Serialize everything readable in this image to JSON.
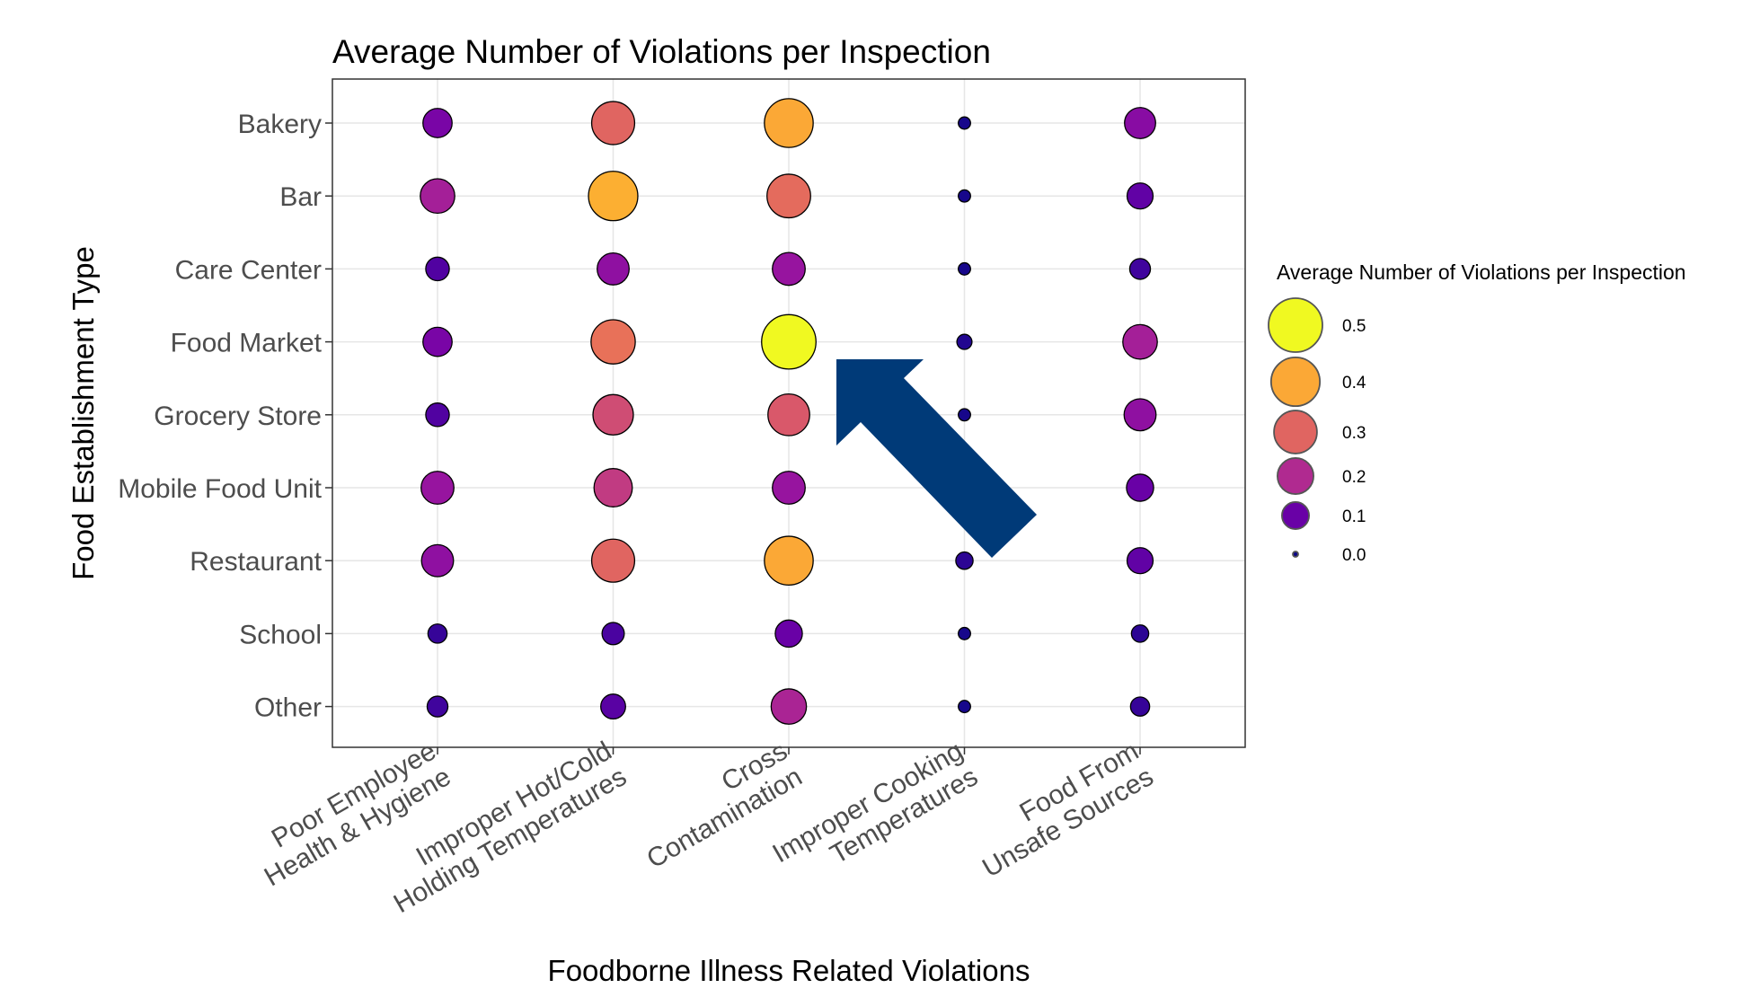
{
  "chart_data": {
    "type": "scatter",
    "title": "Average Number of Violations per Inspection",
    "xlabel": "Foodborne Illness Related Violations",
    "ylabel": "Food Establishment Type",
    "x_categories": [
      [
        "Poor Employee",
        "Health & Hygiene"
      ],
      [
        "Improper Hot/Cold",
        "Holding Temperatures"
      ],
      [
        "Cross",
        "Contamination"
      ],
      [
        "Improper Cooking",
        "Temperatures"
      ],
      [
        "Food From",
        "Unsafe Sources"
      ]
    ],
    "y_categories": [
      "Bakery",
      "Bar",
      "Care Center",
      "Food Market",
      "Grocery Store",
      "Mobile Food Unit",
      "Restaurant",
      "School",
      "Other"
    ],
    "values": [
      [
        0.12,
        0.3,
        0.4,
        0.01,
        0.14
      ],
      [
        0.18,
        0.41,
        0.31,
        0.01,
        0.09
      ],
      [
        0.07,
        0.15,
        0.16,
        0.01,
        0.05
      ],
      [
        0.12,
        0.32,
        0.51,
        0.02,
        0.18
      ],
      [
        0.07,
        0.26,
        0.28,
        0.01,
        0.15
      ],
      [
        0.16,
        0.23,
        0.16,
        0.02,
        0.1
      ],
      [
        0.15,
        0.3,
        0.4,
        0.03,
        0.09
      ],
      [
        0.04,
        0.06,
        0.1,
        0.01,
        0.03
      ],
      [
        0.05,
        0.08,
        0.19,
        0.01,
        0.04
      ]
    ],
    "size_and_color_encode": "value",
    "legend": {
      "title": "Average Number of Violations per Inspection",
      "position": "right",
      "entries": [
        {
          "label": "0.5",
          "value": 0.5
        },
        {
          "label": "0.4",
          "value": 0.4
        },
        {
          "label": "0.3",
          "value": 0.3
        },
        {
          "label": "0.2",
          "value": 0.2
        },
        {
          "label": "0.1",
          "value": 0.1
        },
        {
          "label": "0.0",
          "value": 0.0
        }
      ]
    },
    "colorscale": [
      "#0d0887",
      "#46039f",
      "#7201a8",
      "#9c179e",
      "#bd3786",
      "#d8576b",
      "#ed7953",
      "#fb9f3a",
      "#fdca26",
      "#f0f921"
    ],
    "color_domain": [
      0,
      0.5
    ],
    "grid": true,
    "annotation": {
      "type": "arrow",
      "color": "#003a78",
      "points_to": [
        "Cross Contamination",
        "Food Market"
      ]
    }
  }
}
